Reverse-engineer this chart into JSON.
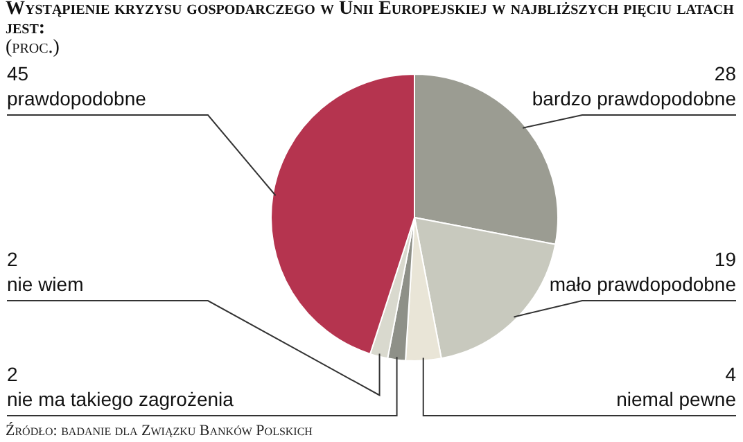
{
  "chart_data": {
    "type": "pie",
    "title": "Wystąpienie kryzysu gospodarczego w Unii Europejskiej w najbliższych pięciu latach jest:",
    "subtitle": "(proc.)",
    "categories": [
      "bardzo prawdopodobne",
      "mało prawdopodobne",
      "niemal pewne",
      "nie ma takiego zagrożenia",
      "nie wiem",
      "prawdopodobne"
    ],
    "values": [
      28,
      19,
      4,
      2,
      2,
      45
    ],
    "colors": [
      "#9b9c92",
      "#c8c9be",
      "#e9e5d7",
      "#8e9088",
      "#d9d9ce",
      "#b5344f"
    ],
    "data_labels": true,
    "legend": false,
    "annotations": [
      "Źródło: badanie dla Związku Banków Polskich"
    ]
  }
}
